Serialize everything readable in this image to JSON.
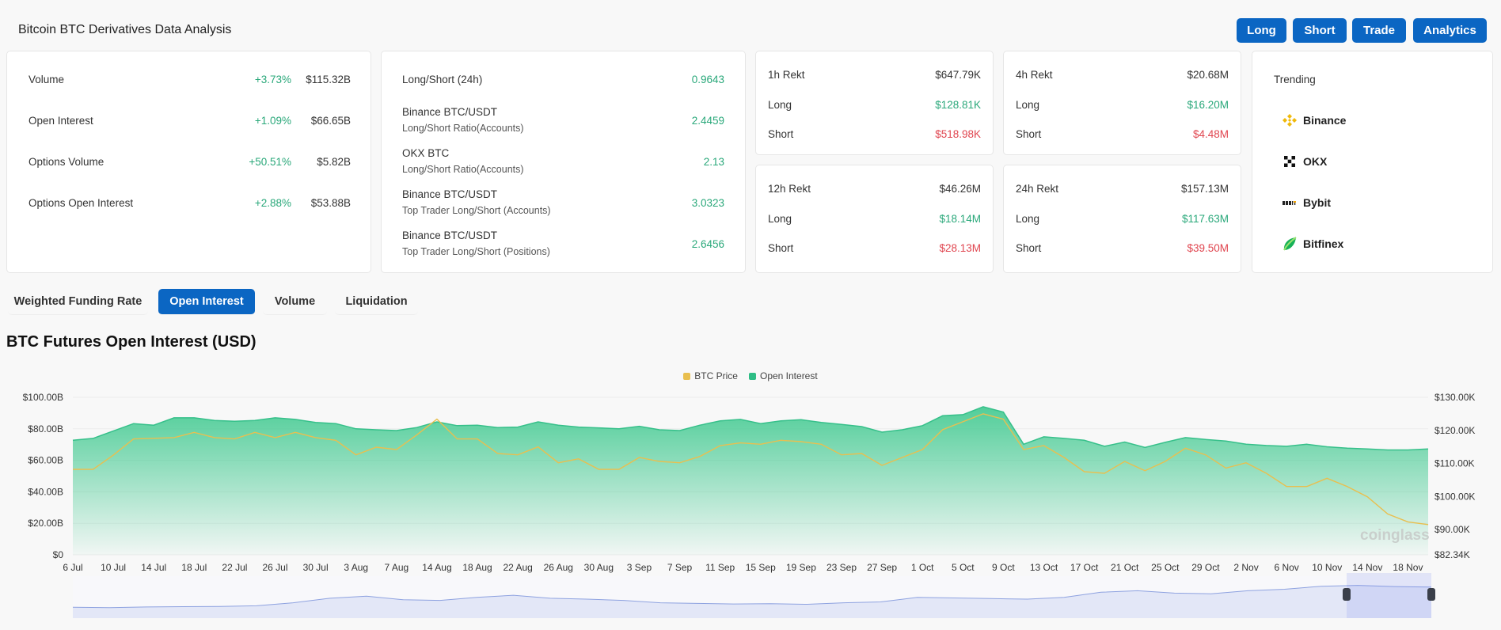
{
  "header": {
    "title": "Bitcoin BTC Derivatives Data Analysis",
    "buttons": [
      "Long",
      "Short",
      "Trade",
      "Analytics"
    ]
  },
  "overview": [
    {
      "label": "Volume",
      "change": "+3.73%",
      "value": "$115.32B"
    },
    {
      "label": "Open Interest",
      "change": "+1.09%",
      "value": "$66.65B"
    },
    {
      "label": "Options Volume",
      "change": "+50.51%",
      "value": "$5.82B"
    },
    {
      "label": "Options Open Interest",
      "change": "+2.88%",
      "value": "$53.88B"
    }
  ],
  "ratios": [
    {
      "label": "Long/Short (24h)",
      "sub": "",
      "value": "0.9643"
    },
    {
      "label": "Binance BTC/USDT",
      "sub": "Long/Short Ratio(Accounts)",
      "value": "2.4459"
    },
    {
      "label": "OKX BTC",
      "sub": "Long/Short Ratio(Accounts)",
      "value": "2.13"
    },
    {
      "label": "Binance BTC/USDT",
      "sub": "Top Trader Long/Short (Accounts)",
      "value": "3.0323"
    },
    {
      "label": "Binance BTC/USDT",
      "sub": "Top Trader Long/Short (Positions)",
      "value": "2.6456"
    }
  ],
  "rekt": [
    {
      "label": "1h Rekt",
      "total": "$647.79K",
      "long_label": "Long",
      "long": "$128.81K",
      "short_label": "Short",
      "short": "$518.98K"
    },
    {
      "label": "4h Rekt",
      "total": "$20.68M",
      "long_label": "Long",
      "long": "$16.20M",
      "short_label": "Short",
      "short": "$4.48M"
    },
    {
      "label": "12h Rekt",
      "total": "$46.26M",
      "long_label": "Long",
      "long": "$18.14M",
      "short_label": "Short",
      "short": "$28.13M"
    },
    {
      "label": "24h Rekt",
      "total": "$157.13M",
      "long_label": "Long",
      "long": "$117.63M",
      "short_label": "Short",
      "short": "$39.50M"
    }
  ],
  "trending": {
    "title": "Trending",
    "items": [
      {
        "name": "Binance",
        "icon": "binance-icon"
      },
      {
        "name": "OKX",
        "icon": "okx-icon"
      },
      {
        "name": "Bybit",
        "icon": "bybit-icon"
      },
      {
        "name": "Bitfinex",
        "icon": "bitfinex-icon"
      }
    ]
  },
  "tabs": [
    {
      "label": "Weighted Funding Rate",
      "active": false
    },
    {
      "label": "Open Interest",
      "active": true
    },
    {
      "label": "Volume",
      "active": false
    },
    {
      "label": "Liquidation",
      "active": false
    }
  ],
  "colors": {
    "accent": "#0b66c3",
    "positive": "#2aa87a",
    "negative": "#e0454f",
    "open_interest": "#3cc58f",
    "btc_price": "#e9bf4f"
  },
  "chart_data": {
    "type": "area",
    "title": "BTC Futures Open Interest (USD)",
    "legend_position": "top",
    "watermark": "coinglass",
    "grid": true,
    "x_tick_labels": [
      "6 Jul",
      "10 Jul",
      "14 Jul",
      "18 Jul",
      "22 Jul",
      "26 Jul",
      "30 Jul",
      "3 Aug",
      "7 Aug",
      "14 Aug",
      "18 Aug",
      "22 Aug",
      "26 Aug",
      "30 Aug",
      "3 Sep",
      "7 Sep",
      "11 Sep",
      "15 Sep",
      "19 Sep",
      "23 Sep",
      "27 Sep",
      "1 Oct",
      "5 Oct",
      "9 Oct",
      "13 Oct",
      "17 Oct",
      "21 Oct",
      "25 Oct",
      "29 Oct",
      "2 Nov",
      "6 Nov",
      "10 Nov",
      "14 Nov",
      "18 Nov"
    ],
    "y_left": {
      "ticks": [
        "$0",
        "$20.00B",
        "$40.00B",
        "$60.00B",
        "$80.00B",
        "$100.00B"
      ],
      "range": [
        0,
        100
      ],
      "unit": "B USD"
    },
    "y_right": {
      "ticks": [
        "$82.34K",
        "$90.00K",
        "$100.00K",
        "$110.00K",
        "$120.00K",
        "$130.00K"
      ],
      "range": [
        82.34,
        130
      ],
      "unit": "K USD"
    },
    "x": [
      "6 Jul",
      "8 Jul",
      "10 Jul",
      "12 Jul",
      "14 Jul",
      "16 Jul",
      "18 Jul",
      "20 Jul",
      "22 Jul",
      "24 Jul",
      "26 Jul",
      "28 Jul",
      "30 Jul",
      "1 Aug",
      "3 Aug",
      "5 Aug",
      "7 Aug",
      "11 Aug",
      "14 Aug",
      "16 Aug",
      "18 Aug",
      "20 Aug",
      "22 Aug",
      "24 Aug",
      "26 Aug",
      "28 Aug",
      "30 Aug",
      "1 Sep",
      "3 Sep",
      "5 Sep",
      "7 Sep",
      "9 Sep",
      "11 Sep",
      "13 Sep",
      "15 Sep",
      "17 Sep",
      "19 Sep",
      "21 Sep",
      "23 Sep",
      "25 Sep",
      "27 Sep",
      "29 Sep",
      "1 Oct",
      "3 Oct",
      "5 Oct",
      "7 Oct",
      "9 Oct",
      "11 Oct",
      "13 Oct",
      "15 Oct",
      "17 Oct",
      "19 Oct",
      "21 Oct",
      "23 Oct",
      "25 Oct",
      "27 Oct",
      "29 Oct",
      "31 Oct",
      "2 Nov",
      "4 Nov",
      "6 Nov",
      "8 Nov",
      "10 Nov",
      "12 Nov",
      "14 Nov",
      "16 Nov",
      "18 Nov",
      "20 Nov"
    ],
    "series": [
      {
        "name": "Open Interest",
        "axis": "left",
        "values": [
          72.7,
          73.9,
          78.6,
          83.3,
          82.3,
          87,
          87,
          85.3,
          84.8,
          85.3,
          87,
          86,
          84,
          83.3,
          80,
          79.4,
          78.9,
          80.8,
          84.4,
          82,
          82.3,
          80.8,
          81.1,
          84.4,
          82.3,
          81.1,
          80.6,
          80,
          81.6,
          79.4,
          78.9,
          82.3,
          85,
          86,
          83.3,
          85,
          85.8,
          84,
          82.8,
          81.4,
          77.9,
          79.4,
          82,
          88.3,
          89,
          94,
          90.6,
          70.2,
          74.9,
          73.9,
          72.7,
          68.9,
          71.6,
          68.2,
          71.4,
          74.4,
          73.2,
          72.2,
          70.2,
          69.4,
          68.9,
          70.2,
          68.6,
          67.7,
          67.2,
          66.6,
          66.6,
          67.2
        ]
      },
      {
        "name": "BTC Price",
        "axis": "right",
        "values": [
          108.2,
          108.2,
          112.5,
          117.4,
          117.6,
          117.8,
          119.4,
          117.8,
          117.4,
          119.4,
          117.8,
          119.4,
          117.8,
          117,
          112.6,
          114.9,
          114.2,
          118.6,
          123.4,
          117.4,
          117.4,
          113,
          112.6,
          115,
          110.2,
          111.4,
          108.2,
          108.2,
          111.8,
          110.6,
          110.2,
          112.1,
          115.4,
          116.2,
          115.8,
          117,
          116.6,
          115.8,
          112.6,
          113,
          109.4,
          111.8,
          114.2,
          120.2,
          122.6,
          125,
          123.4,
          114.2,
          115.4,
          111.8,
          107.5,
          107,
          110.6,
          107.8,
          110.6,
          114.6,
          112.6,
          108.6,
          110.2,
          107,
          103,
          103,
          105.5,
          103,
          99.9,
          94.7,
          92.3,
          91.5
        ]
      }
    ],
    "navigator": {
      "values": [
        0.15,
        0.14,
        0.16,
        0.17,
        0.18,
        0.2,
        0.3,
        0.45,
        0.52,
        0.4,
        0.38,
        0.48,
        0.55,
        0.45,
        0.42,
        0.38,
        0.3,
        0.28,
        0.26,
        0.27,
        0.25,
        0.3,
        0.33,
        0.48,
        0.46,
        0.44,
        0.42,
        0.48,
        0.65,
        0.7,
        0.62,
        0.6,
        0.7,
        0.75,
        0.85,
        0.88,
        0.84,
        0.82
      ],
      "window": [
        "14 Nov",
        "20 Nov"
      ]
    }
  }
}
